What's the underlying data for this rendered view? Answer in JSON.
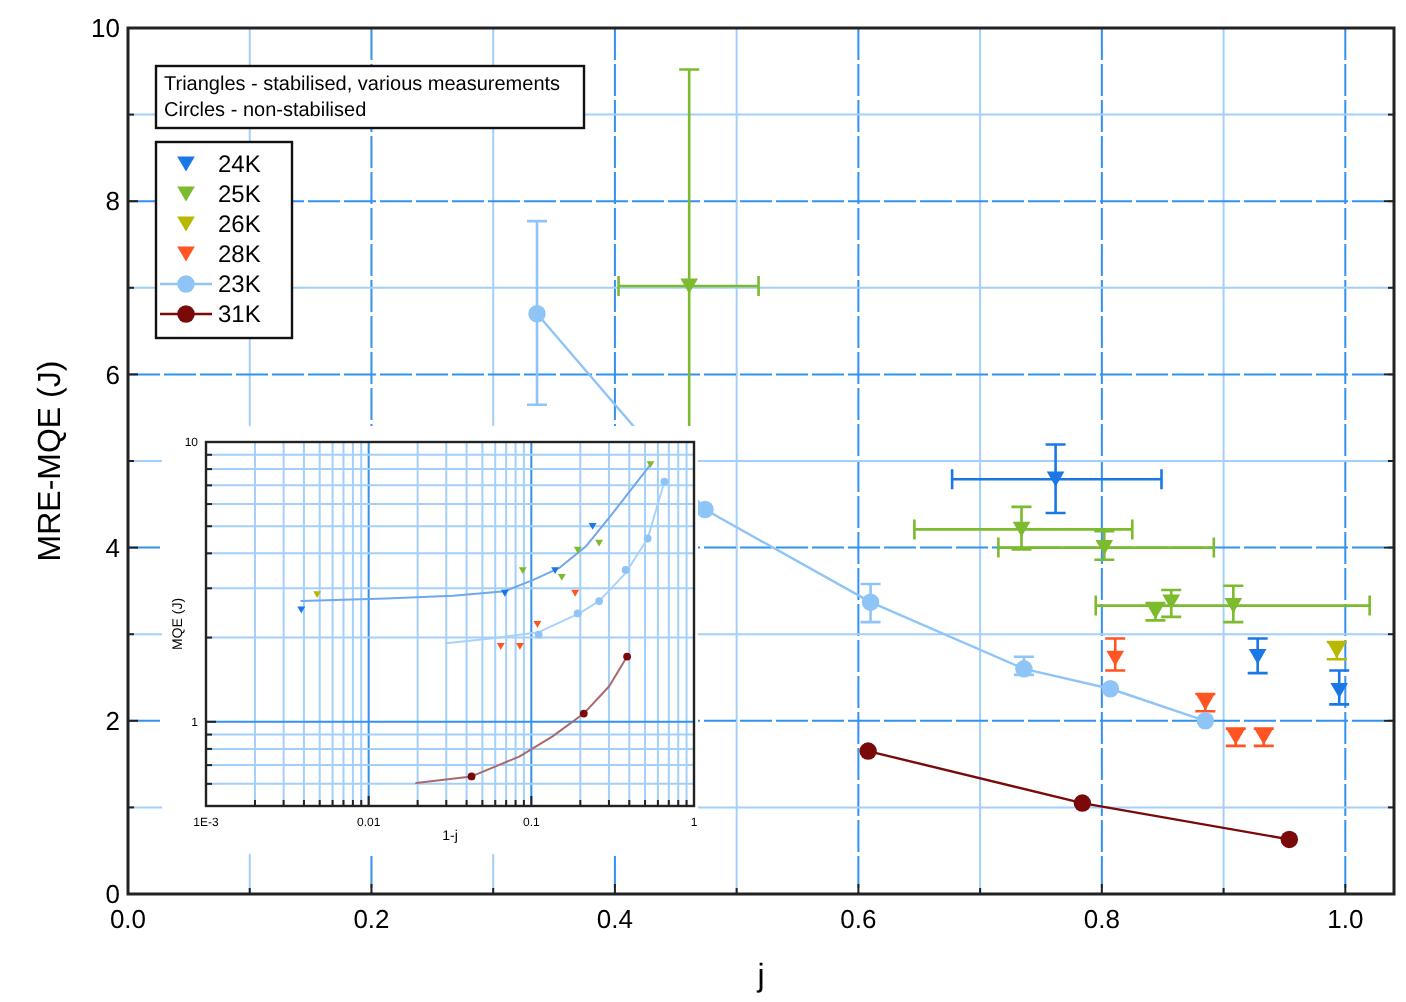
{
  "chart_data": [
    {
      "type": "scatter",
      "xlabel": "j",
      "ylabel": "MRE-MQE (J)",
      "xlim": [
        0,
        1.04
      ],
      "ylim": [
        0,
        10
      ],
      "xticks": [
        {
          "value": 0,
          "label": "0.0"
        },
        {
          "value": 0.1,
          "label": null
        },
        {
          "value": 0.2,
          "label": "0.2"
        },
        {
          "value": 0.3,
          "label": null
        },
        {
          "value": 0.4,
          "label": "0.4"
        },
        {
          "value": 0.5,
          "label": null
        },
        {
          "value": 0.6,
          "label": "0.6"
        },
        {
          "value": 0.7,
          "label": null
        },
        {
          "value": 0.8,
          "label": "0.8"
        },
        {
          "value": 0.9,
          "label": null
        },
        {
          "value": 1,
          "label": "1.0"
        }
      ],
      "yticks": [
        0,
        {
          "value": 1,
          "label": null
        },
        2,
        {
          "value": 3,
          "label": null
        },
        4,
        {
          "value": 5,
          "label": null
        },
        6,
        {
          "value": 7,
          "label": null
        },
        8,
        {
          "value": 9,
          "label": null
        },
        10
      ],
      "grid": true,
      "legend": "top left",
      "annotations": [
        "Triangles - stabilised, various measurements",
        "Circles - non-stabilised"
      ],
      "series": [
        {
          "name": "24K",
          "type": "scatter",
          "marker": "triangle",
          "color": "#1a78e6",
          "x": [
            0.762,
            0.928,
            0.995
          ],
          "values": [
            4.79,
            2.74,
            2.35
          ],
          "errors": [
            [
              4.4,
              5.19
            ],
            [
              2.55,
              2.95
            ],
            [
              2.19,
              2.58
            ]
          ],
          "xerrors": [
            [
              0.677,
              0.849
            ],
            null,
            null
          ]
        },
        {
          "name": "25K",
          "type": "scatter",
          "marker": "triangle",
          "color": "#7cbb2e",
          "x": [
            0.461,
            0.734,
            0.802,
            0.844,
            0.857,
            0.908
          ],
          "values": [
            7.02,
            4.21,
            4.0,
            3.26,
            3.37,
            3.33
          ],
          "errors": [
            2.5,
            [
              3.98,
              4.47
            ],
            [
              3.86,
              4.19
            ],
            0.1,
            [
              3.2,
              3.51
            ],
            [
              3.14,
              3.56
            ]
          ],
          "xerrors": [
            [
              0.403,
              0.518
            ],
            [
              0.646,
              0.825
            ],
            [
              0.715,
              0.892
            ],
            null,
            null,
            [
              0.795,
              1.02
            ]
          ]
        },
        {
          "name": "26K",
          "type": "scatter",
          "marker": "triangle",
          "color": "#b8b800",
          "x": [
            0.993
          ],
          "values": [
            2.81
          ],
          "errors": [
            0.1
          ]
        },
        {
          "name": "28K",
          "type": "scatter",
          "marker": "triangle",
          "color": "#ff5522",
          "x": [
            0.811,
            0.885,
            0.91,
            0.933
          ],
          "values": [
            2.72,
            2.21,
            1.81,
            1.81
          ],
          "errors": [
            [
              2.58,
              2.95
            ],
            0.1,
            0.1,
            0.1
          ]
        },
        {
          "name": "23K",
          "type": "line",
          "marker": "circle",
          "color": "#8fc4f7",
          "x": [
            0.336,
            0.474,
            0.61,
            0.736,
            0.807,
            0.885
          ],
          "values": [
            6.7,
            4.44,
            3.37,
            2.6,
            2.37,
            2.0
          ],
          "errors": [
            [
              5.65,
              7.77
            ],
            null,
            [
              3.14,
              3.58
            ],
            [
              2.53,
              2.74
            ],
            null,
            null
          ]
        },
        {
          "name": "31K",
          "type": "line",
          "marker": "circle",
          "color": "#7a0a0a",
          "x": [
            0.608,
            0.784,
            0.954
          ],
          "values": [
            1.65,
            1.05,
            0.63
          ]
        }
      ]
    },
    {
      "type": "scatter",
      "xlabel": "1-j",
      "ylabel": "MQE (J)",
      "log": "xy",
      "xlim": [
        0.001,
        1
      ],
      "ylim": [
        0.5,
        10
      ],
      "xticks": [
        {
          "value": 0.001,
          "label": "1E-3"
        },
        {
          "value": 0.002,
          "label": null
        },
        {
          "value": 0.003,
          "label": null
        },
        {
          "value": 0.004,
          "label": null
        },
        {
          "value": 0.005,
          "label": null
        },
        {
          "value": 0.006,
          "label": null
        },
        {
          "value": 0.007,
          "label": null
        },
        {
          "value": 0.008,
          "label": null
        },
        {
          "value": 0.009,
          "label": null
        },
        {
          "value": 0.01,
          "label": "0.01"
        },
        {
          "value": 0.02,
          "label": null
        },
        {
          "value": 0.03,
          "label": null
        },
        {
          "value": 0.04,
          "label": null
        },
        {
          "value": 0.05,
          "label": null
        },
        {
          "value": 0.06,
          "label": null
        },
        {
          "value": 0.07,
          "label": null
        },
        {
          "value": 0.08,
          "label": null
        },
        {
          "value": 0.09,
          "label": null
        },
        {
          "value": 0.1,
          "label": "0.1"
        },
        {
          "value": 0.2,
          "label": null
        },
        {
          "value": 0.3,
          "label": null
        },
        {
          "value": 0.4,
          "label": null
        },
        {
          "value": 0.5,
          "label": null
        },
        {
          "value": 0.6,
          "label": null
        },
        {
          "value": 0.7,
          "label": null
        },
        {
          "value": 0.8,
          "label": null
        },
        {
          "value": 0.9,
          "label": null
        },
        1
      ],
      "yticks": [
        {
          "value": 0.5,
          "label": null
        },
        {
          "value": 0.6,
          "label": null
        },
        {
          "value": 0.7,
          "label": null
        },
        {
          "value": 0.8,
          "label": null
        },
        {
          "value": 0.9,
          "label": null
        },
        1,
        {
          "value": 2,
          "label": null
        },
        {
          "value": 3,
          "label": null
        },
        {
          "value": 4,
          "label": null
        },
        {
          "value": 5,
          "label": null
        },
        {
          "value": 6,
          "label": null
        },
        {
          "value": 7,
          "label": null
        },
        {
          "value": 8,
          "label": null
        },
        {
          "value": 9,
          "label": null
        },
        10
      ],
      "grid": true,
      "series": [
        {
          "type": "line",
          "marker": "none",
          "color": "#6fa8ec",
          "x": [
            0.00385,
            0.0128,
            0.033,
            0.0687,
            0.102,
            0.149,
            0.216,
            0.316,
            0.54
          ],
          "values": [
            2.7,
            2.76,
            2.82,
            2.93,
            3.21,
            3.55,
            4.23,
            5.56,
            8.3
          ]
        },
        {
          "type": "line",
          "marker": "none",
          "color": "#a9d2fa",
          "x": [
            0.0299,
            0.058,
            0.111,
            0.197,
            0.261,
            0.38,
            0.519,
            0.658
          ],
          "values": [
            1.91,
            1.99,
            2.09,
            2.44,
            2.7,
            3.4,
            4.52,
            7.22
          ]
        },
        {
          "type": "line",
          "marker": "none",
          "color": "#a86a6a",
          "x": [
            0.0196,
            0.0429,
            0.0843,
            0.135,
            0.21,
            0.301,
            0.388
          ],
          "values": [
            0.604,
            0.638,
            0.751,
            0.887,
            1.07,
            1.34,
            1.71
          ]
        },
        {
          "type": "scatter",
          "marker": "triangle",
          "color": "#1a78e6",
          "x": [
            0.00385,
            0.0687,
            0.14,
            0.238
          ],
          "values": [
            2.51,
            2.88,
            3.47,
            4.99
          ]
        },
        {
          "type": "scatter",
          "marker": "triangle",
          "color": "#7cbb2e",
          "x": [
            0.0886,
            0.154,
            0.193,
            0.261,
            0.54
          ],
          "values": [
            3.47,
            3.28,
            4.11,
            4.35,
            8.3
          ]
        },
        {
          "type": "scatter",
          "marker": "triangle",
          "color": "#b8b800",
          "x": [
            0.00482
          ],
          "values": [
            2.85
          ]
        },
        {
          "type": "scatter",
          "marker": "triangle",
          "color": "#ff5522",
          "x": [
            0.186,
            0.109,
            0.0649,
            0.0851
          ],
          "values": [
            2.88,
            2.23,
            1.86,
            1.86
          ]
        },
        {
          "type": "scatter",
          "marker": "circle",
          "color": "#8fc4f7",
          "x": [
            0.111,
            0.193,
            0.261,
            0.38,
            0.519,
            0.658
          ],
          "values": [
            2.05,
            2.44,
            2.7,
            3.49,
            4.52,
            7.22
          ]
        },
        {
          "type": "scatter",
          "marker": "circle",
          "color": "#7a0a0a",
          "x": [
            0.0429,
            0.21,
            0.388
          ],
          "values": [
            0.638,
            1.07,
            1.71
          ]
        }
      ]
    }
  ]
}
